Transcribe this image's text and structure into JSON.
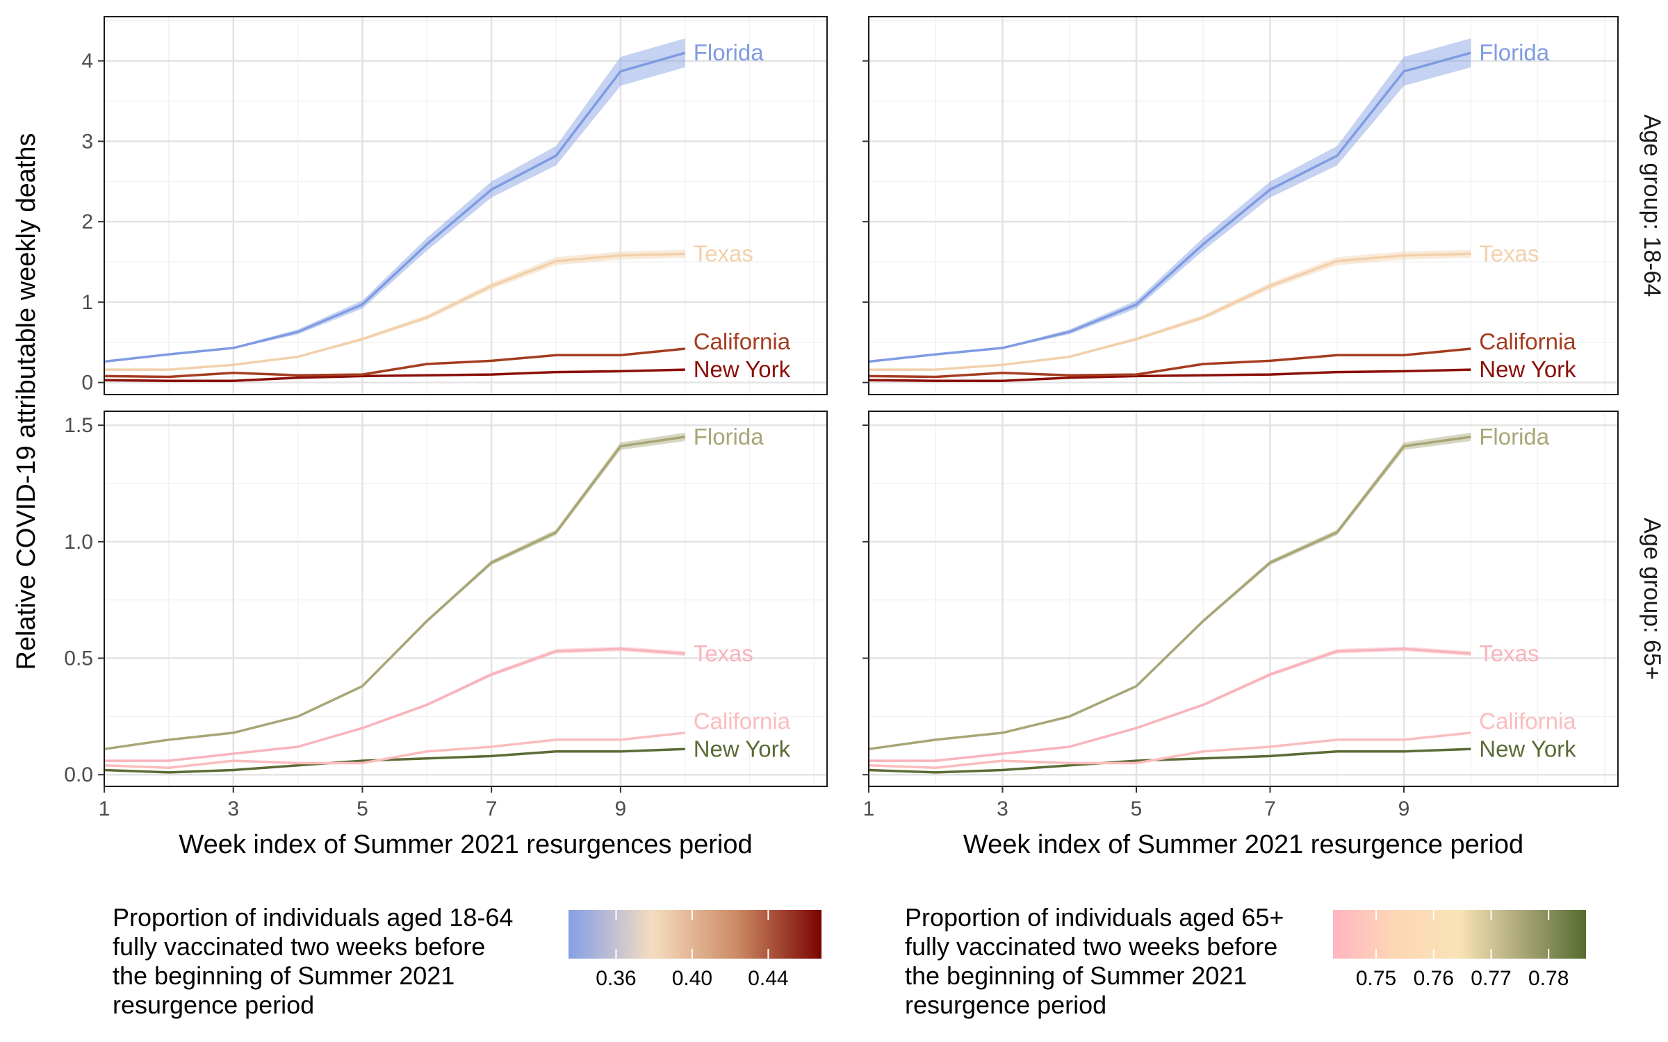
{
  "chart_data": {
    "type": "line",
    "ylabel": "Relative COVID-19 attributable weekly deaths",
    "rows": [
      {
        "strip": "Age group: 18-64",
        "ylim": [
          -0.15,
          4.55
        ],
        "yticks": [
          0,
          1,
          2,
          3,
          4
        ],
        "ytick_labels": [
          "0",
          "1",
          "2",
          "3",
          "4"
        ]
      },
      {
        "strip": "Age group: 65+",
        "ylim": [
          -0.05,
          1.56
        ],
        "yticks": [
          0.0,
          0.5,
          1.0,
          1.5
        ],
        "ytick_labels": [
          "0.0",
          "0.5",
          "1.0",
          "1.5"
        ]
      }
    ],
    "columns": [
      {
        "xlabel": "Week index of Summer 2021 resurgences period",
        "colorscale": "18-64"
      },
      {
        "xlabel": "Week index of Summer 2021 resurgence period",
        "colorscale": "65+"
      }
    ],
    "xlim": [
      1,
      12.2
    ],
    "xticks": [
      1,
      3,
      5,
      7,
      9
    ],
    "x": [
      1,
      2,
      3,
      4,
      5,
      6,
      7,
      8,
      9,
      10
    ],
    "series": [
      {
        "name": "Florida",
        "values_18_64": [
          0.26,
          0.35,
          0.43,
          0.63,
          0.97,
          1.72,
          2.4,
          2.82,
          3.87,
          4.1
        ],
        "band_18_64": [
          0.01,
          0.01,
          0.01,
          0.03,
          0.05,
          0.08,
          0.1,
          0.12,
          0.18,
          0.18
        ],
        "values_65": [
          0.11,
          0.15,
          0.18,
          0.25,
          0.38,
          0.66,
          0.91,
          1.04,
          1.41,
          1.45
        ],
        "band_65": [
          0.003,
          0.003,
          0.004,
          0.005,
          0.006,
          0.008,
          0.01,
          0.012,
          0.016,
          0.018
        ],
        "color_18_64": "#7f9be2",
        "color_65": "#a8a676"
      },
      {
        "name": "Texas",
        "values_18_64": [
          0.16,
          0.16,
          0.22,
          0.32,
          0.54,
          0.81,
          1.2,
          1.51,
          1.58,
          1.6
        ],
        "band_18_64": [
          0.01,
          0.01,
          0.01,
          0.01,
          0.02,
          0.03,
          0.04,
          0.05,
          0.05,
          0.05
        ],
        "values_65": [
          0.06,
          0.06,
          0.09,
          0.12,
          0.2,
          0.3,
          0.43,
          0.53,
          0.54,
          0.52
        ],
        "band_65": [
          0.002,
          0.002,
          0.003,
          0.004,
          0.005,
          0.006,
          0.008,
          0.01,
          0.01,
          0.01
        ],
        "color_18_64": "#f2d0ab",
        "color_65": "#f9b3bc"
      },
      {
        "name": "California",
        "values_18_64": [
          0.08,
          0.07,
          0.12,
          0.09,
          0.1,
          0.23,
          0.27,
          0.34,
          0.34,
          0.42
        ],
        "band_18_64": [
          0.005,
          0.005,
          0.005,
          0.005,
          0.005,
          0.01,
          0.01,
          0.01,
          0.01,
          0.01
        ],
        "values_65": [
          0.04,
          0.03,
          0.06,
          0.05,
          0.05,
          0.1,
          0.12,
          0.15,
          0.15,
          0.18
        ],
        "band_65": [
          0.002,
          0.002,
          0.002,
          0.002,
          0.002,
          0.003,
          0.003,
          0.004,
          0.004,
          0.004
        ],
        "color_18_64": "#a53c20",
        "color_65": "#fbbcbd"
      },
      {
        "name": "New York",
        "values_18_64": [
          0.03,
          0.02,
          0.02,
          0.06,
          0.08,
          0.09,
          0.1,
          0.13,
          0.14,
          0.16
        ],
        "band_18_64": [
          0.003,
          0.003,
          0.003,
          0.004,
          0.004,
          0.005,
          0.005,
          0.006,
          0.006,
          0.006
        ],
        "values_65": [
          0.02,
          0.01,
          0.02,
          0.04,
          0.06,
          0.07,
          0.08,
          0.1,
          0.1,
          0.11
        ],
        "band_65": [
          0.001,
          0.001,
          0.001,
          0.002,
          0.002,
          0.002,
          0.002,
          0.003,
          0.003,
          0.003
        ],
        "color_18_64": "#8b0f08",
        "color_65": "#5b6b34"
      }
    ],
    "legends": [
      {
        "title_lines": [
          "Proportion of individuals aged 18-64",
          "fully vaccinated two weeks before",
          "the beginning of Summer 2021",
          "resurgence period"
        ],
        "range": [
          0.335,
          0.468
        ],
        "ticks": [
          0.36,
          0.4,
          0.44
        ],
        "tick_labels": [
          "0.36",
          "0.40",
          "0.44"
        ],
        "gradient_colors": [
          "#849fe6",
          "#f5dcc0",
          "#cc8a64",
          "#7a0400"
        ]
      },
      {
        "title_lines": [
          "Proportion of individuals aged 65+",
          "fully vaccinated two weeks before",
          "the beginning of Summer 2021",
          "resurgence period"
        ],
        "range": [
          0.7425,
          0.7865
        ],
        "ticks": [
          0.75,
          0.76,
          0.77,
          0.78
        ],
        "tick_labels": [
          "0.75",
          "0.76",
          "0.77",
          "0.78"
        ],
        "gradient_colors": [
          "#ffb6c1",
          "#fdd7b5",
          "#f9e3b6",
          "#a8a676",
          "#556b2f"
        ]
      }
    ]
  }
}
